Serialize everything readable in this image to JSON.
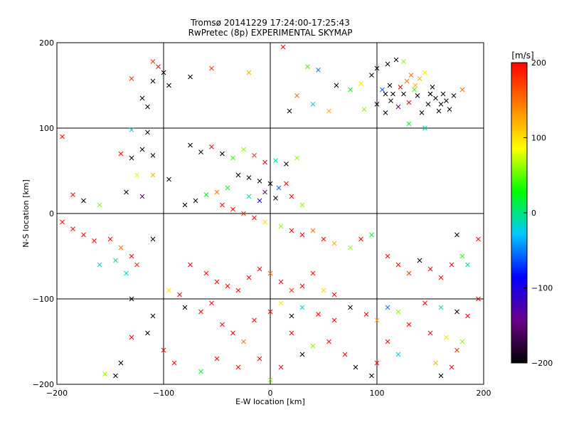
{
  "chart_data": {
    "type": "scatter",
    "title_line1": "Tromsø 20141229 17:24:00-17:25:43",
    "title_line2": "RwPretec (8p) EXPERIMENTAL SKYMAP",
    "xlabel": "E-W location [km]",
    "ylabel": "N-S location [km]",
    "xlim": [
      -200,
      200
    ],
    "ylim": [
      -200,
      200
    ],
    "xticks": [
      -200,
      -100,
      0,
      100,
      200
    ],
    "yticks": [
      -200,
      -100,
      0,
      100,
      200
    ],
    "grid": true,
    "colorbar": {
      "label": "[m/s]",
      "min": -200,
      "max": 200,
      "ticks": [
        200,
        100,
        0,
        -100,
        -200
      ],
      "colors": [
        "#000000",
        "#6a008a",
        "#0000ff",
        "#00c8ff",
        "#00ff00",
        "#ffff00",
        "#ff8000",
        "#ff0000"
      ]
    },
    "markers": {
      "cross": "×",
      "dot": "+"
    },
    "points_x": [
      {
        "x": -110,
        "y": 178,
        "v": 180
      },
      {
        "x": -105,
        "y": 172,
        "v": 200
      },
      {
        "x": -100,
        "y": 165,
        "v": -200
      },
      {
        "x": -95,
        "y": 150,
        "v": -200
      },
      {
        "x": -110,
        "y": 155,
        "v": -200
      },
      {
        "x": -120,
        "y": 135,
        "v": -200
      },
      {
        "x": -115,
        "y": 125,
        "v": -200
      },
      {
        "x": -130,
        "y": 158,
        "v": 180
      },
      {
        "x": -75,
        "y": 160,
        "v": -200
      },
      {
        "x": -55,
        "y": 170,
        "v": 180
      },
      {
        "x": -20,
        "y": 165,
        "v": 120
      },
      {
        "x": 12,
        "y": 195,
        "v": 200
      },
      {
        "x": 35,
        "y": 172,
        "v": 40
      },
      {
        "x": 45,
        "y": 168,
        "v": -50
      },
      {
        "x": 62,
        "y": 150,
        "v": -200
      },
      {
        "x": 18,
        "y": 120,
        "v": -200
      },
      {
        "x": 25,
        "y": 138,
        "v": 150
      },
      {
        "x": 40,
        "y": 128,
        "v": -20
      },
      {
        "x": 55,
        "y": 120,
        "v": 120
      },
      {
        "x": 75,
        "y": 145,
        "v": 20
      },
      {
        "x": 85,
        "y": 152,
        "v": 100
      },
      {
        "x": 95,
        "y": 162,
        "v": -200
      },
      {
        "x": 100,
        "y": 170,
        "v": -200
      },
      {
        "x": 110,
        "y": 175,
        "v": -200
      },
      {
        "x": 118,
        "y": 180,
        "v": -200
      },
      {
        "x": 125,
        "y": 178,
        "v": 60
      },
      {
        "x": 105,
        "y": 145,
        "v": -60
      },
      {
        "x": 112,
        "y": 150,
        "v": -200
      },
      {
        "x": 115,
        "y": 140,
        "v": -200
      },
      {
        "x": 122,
        "y": 148,
        "v": 200
      },
      {
        "x": 128,
        "y": 155,
        "v": 150
      },
      {
        "x": 132,
        "y": 162,
        "v": 150
      },
      {
        "x": 136,
        "y": 150,
        "v": 120
      },
      {
        "x": 140,
        "y": 158,
        "v": 120
      },
      {
        "x": 145,
        "y": 165,
        "v": 100
      },
      {
        "x": 150,
        "y": 140,
        "v": -200
      },
      {
        "x": 155,
        "y": 135,
        "v": -200
      },
      {
        "x": 160,
        "y": 128,
        "v": -200
      },
      {
        "x": 165,
        "y": 132,
        "v": -200
      },
      {
        "x": 148,
        "y": 128,
        "v": -200
      },
      {
        "x": 158,
        "y": 120,
        "v": -200
      },
      {
        "x": 168,
        "y": 122,
        "v": -200
      },
      {
        "x": 172,
        "y": 138,
        "v": -200
      },
      {
        "x": 142,
        "y": 118,
        "v": -200
      },
      {
        "x": 130,
        "y": 130,
        "v": 200
      },
      {
        "x": 120,
        "y": 125,
        "v": -150
      },
      {
        "x": 108,
        "y": 118,
        "v": -200
      },
      {
        "x": 100,
        "y": 128,
        "v": -200
      },
      {
        "x": 88,
        "y": 122,
        "v": 60
      },
      {
        "x": 130,
        "y": 105,
        "v": 20
      },
      {
        "x": 145,
        "y": 100,
        "v": 0
      },
      {
        "x": 180,
        "y": 145,
        "v": 150
      },
      {
        "x": -195,
        "y": 90,
        "v": 200
      },
      {
        "x": -130,
        "y": 98,
        "v": -20
      },
      {
        "x": -115,
        "y": 95,
        "v": -200
      },
      {
        "x": -120,
        "y": 75,
        "v": -200
      },
      {
        "x": -110,
        "y": 68,
        "v": -200
      },
      {
        "x": -130,
        "y": 65,
        "v": -200
      },
      {
        "x": -140,
        "y": 70,
        "v": 200
      },
      {
        "x": -125,
        "y": 45,
        "v": 80
      },
      {
        "x": -110,
        "y": 45,
        "v": 120
      },
      {
        "x": -185,
        "y": 22,
        "v": 200
      },
      {
        "x": -175,
        "y": 15,
        "v": -200
      },
      {
        "x": -160,
        "y": 10,
        "v": 60
      },
      {
        "x": -135,
        "y": 25,
        "v": -200
      },
      {
        "x": -120,
        "y": 20,
        "v": -150
      },
      {
        "x": -195,
        "y": -10,
        "v": 200
      },
      {
        "x": -185,
        "y": -18,
        "v": 200
      },
      {
        "x": -175,
        "y": -25,
        "v": 200
      },
      {
        "x": -165,
        "y": -32,
        "v": 200
      },
      {
        "x": -150,
        "y": -30,
        "v": 200
      },
      {
        "x": -140,
        "y": -40,
        "v": 150
      },
      {
        "x": -130,
        "y": -50,
        "v": 200
      },
      {
        "x": -125,
        "y": -60,
        "v": 180
      },
      {
        "x": -145,
        "y": -55,
        "v": 0
      },
      {
        "x": -160,
        "y": -60,
        "v": -20
      },
      {
        "x": -135,
        "y": -70,
        "v": -20
      },
      {
        "x": -110,
        "y": -30,
        "v": -200
      },
      {
        "x": -95,
        "y": 40,
        "v": -200
      },
      {
        "x": -75,
        "y": 80,
        "v": -200
      },
      {
        "x": -65,
        "y": 72,
        "v": -200
      },
      {
        "x": -55,
        "y": 78,
        "v": 200
      },
      {
        "x": -45,
        "y": 70,
        "v": -200
      },
      {
        "x": -35,
        "y": 65,
        "v": 40
      },
      {
        "x": -25,
        "y": 75,
        "v": 60
      },
      {
        "x": -15,
        "y": 68,
        "v": 180
      },
      {
        "x": -5,
        "y": 60,
        "v": 200
      },
      {
        "x": 5,
        "y": 62,
        "v": 0
      },
      {
        "x": 15,
        "y": 58,
        "v": -200
      },
      {
        "x": 25,
        "y": 65,
        "v": 60
      },
      {
        "x": -30,
        "y": 45,
        "v": -200
      },
      {
        "x": -20,
        "y": 42,
        "v": -200
      },
      {
        "x": -10,
        "y": 38,
        "v": -200
      },
      {
        "x": 0,
        "y": 35,
        "v": -200
      },
      {
        "x": 8,
        "y": 30,
        "v": -60
      },
      {
        "x": 15,
        "y": 35,
        "v": 200
      },
      {
        "x": -40,
        "y": 30,
        "v": 20
      },
      {
        "x": -50,
        "y": 25,
        "v": 150
      },
      {
        "x": -60,
        "y": 22,
        "v": 20
      },
      {
        "x": -70,
        "y": 15,
        "v": -200
      },
      {
        "x": -80,
        "y": 10,
        "v": -200
      },
      {
        "x": -45,
        "y": 10,
        "v": 200
      },
      {
        "x": -35,
        "y": 5,
        "v": 200
      },
      {
        "x": -25,
        "y": 0,
        "v": 180
      },
      {
        "x": -15,
        "y": -5,
        "v": 200
      },
      {
        "x": -5,
        "y": -10,
        "v": 100
      },
      {
        "x": 10,
        "y": -15,
        "v": 60
      },
      {
        "x": 20,
        "y": -20,
        "v": 200
      },
      {
        "x": 30,
        "y": -25,
        "v": 200
      },
      {
        "x": 40,
        "y": -20,
        "v": 150
      },
      {
        "x": 50,
        "y": -30,
        "v": 200
      },
      {
        "x": 60,
        "y": -35,
        "v": 120
      },
      {
        "x": 75,
        "y": -40,
        "v": 60
      },
      {
        "x": 85,
        "y": -30,
        "v": 200
      },
      {
        "x": 95,
        "y": -25,
        "v": 20
      },
      {
        "x": 110,
        "y": -50,
        "v": 200
      },
      {
        "x": 120,
        "y": -60,
        "v": 200
      },
      {
        "x": 130,
        "y": -70,
        "v": 180
      },
      {
        "x": 140,
        "y": -55,
        "v": -200
      },
      {
        "x": 150,
        "y": -65,
        "v": 200
      },
      {
        "x": 160,
        "y": -75,
        "v": 200
      },
      {
        "x": 170,
        "y": -60,
        "v": 200
      },
      {
        "x": 180,
        "y": -50,
        "v": 40
      },
      {
        "x": 185,
        "y": -60,
        "v": 0
      },
      {
        "x": 195,
        "y": -30,
        "v": 200
      },
      {
        "x": 175,
        "y": -25,
        "v": -200
      },
      {
        "x": -75,
        "y": -60,
        "v": 200
      },
      {
        "x": -60,
        "y": -70,
        "v": 200
      },
      {
        "x": -50,
        "y": -80,
        "v": 200
      },
      {
        "x": -40,
        "y": -85,
        "v": 200
      },
      {
        "x": -30,
        "y": -90,
        "v": 200
      },
      {
        "x": -20,
        "y": -75,
        "v": 200
      },
      {
        "x": -10,
        "y": -65,
        "v": 200
      },
      {
        "x": 0,
        "y": -70,
        "v": 150
      },
      {
        "x": 10,
        "y": -80,
        "v": 200
      },
      {
        "x": 20,
        "y": -90,
        "v": 180
      },
      {
        "x": 30,
        "y": -85,
        "v": 200
      },
      {
        "x": 40,
        "y": -70,
        "v": 200
      },
      {
        "x": 50,
        "y": -90,
        "v": 100
      },
      {
        "x": 60,
        "y": -95,
        "v": 200
      },
      {
        "x": -85,
        "y": -95,
        "v": 200
      },
      {
        "x": -95,
        "y": -90,
        "v": 100
      },
      {
        "x": -80,
        "y": -110,
        "v": -200
      },
      {
        "x": -65,
        "y": -115,
        "v": 200
      },
      {
        "x": -55,
        "y": -105,
        "v": 200
      },
      {
        "x": -45,
        "y": -130,
        "v": 200
      },
      {
        "x": -35,
        "y": -140,
        "v": 200
      },
      {
        "x": -25,
        "y": -150,
        "v": 150
      },
      {
        "x": -15,
        "y": -125,
        "v": 200
      },
      {
        "x": 0,
        "y": -115,
        "v": 200
      },
      {
        "x": 10,
        "y": -105,
        "v": 100
      },
      {
        "x": 20,
        "y": -120,
        "v": -200
      },
      {
        "x": 30,
        "y": -110,
        "v": -20
      },
      {
        "x": 45,
        "y": -118,
        "v": 200
      },
      {
        "x": 60,
        "y": -125,
        "v": 200
      },
      {
        "x": 75,
        "y": -110,
        "v": -200
      },
      {
        "x": 90,
        "y": -118,
        "v": 200
      },
      {
        "x": 100,
        "y": -125,
        "v": 120
      },
      {
        "x": 110,
        "y": -110,
        "v": -50
      },
      {
        "x": 120,
        "y": -115,
        "v": 60
      },
      {
        "x": 130,
        "y": -130,
        "v": 200
      },
      {
        "x": 145,
        "y": -105,
        "v": 200
      },
      {
        "x": 160,
        "y": -110,
        "v": 0
      },
      {
        "x": 175,
        "y": -115,
        "v": -200
      },
      {
        "x": 185,
        "y": -120,
        "v": 200
      },
      {
        "x": 195,
        "y": -100,
        "v": 200
      },
      {
        "x": 150,
        "y": -140,
        "v": 200
      },
      {
        "x": 165,
        "y": -145,
        "v": 100
      },
      {
        "x": 175,
        "y": -160,
        "v": 180
      },
      {
        "x": 180,
        "y": -150,
        "v": 60
      },
      {
        "x": 155,
        "y": -175,
        "v": 120
      },
      {
        "x": 170,
        "y": -180,
        "v": 200
      },
      {
        "x": 110,
        "y": -150,
        "v": 200
      },
      {
        "x": 120,
        "y": -165,
        "v": -20
      },
      {
        "x": 100,
        "y": -175,
        "v": 200
      },
      {
        "x": 95,
        "y": -190,
        "v": -200
      },
      {
        "x": 80,
        "y": -180,
        "v": -200
      },
      {
        "x": 70,
        "y": -165,
        "v": 200
      },
      {
        "x": 55,
        "y": -150,
        "v": 200
      },
      {
        "x": 40,
        "y": -155,
        "v": 60
      },
      {
        "x": 30,
        "y": -165,
        "v": -200
      },
      {
        "x": 20,
        "y": -140,
        "v": 200
      },
      {
        "x": 10,
        "y": -180,
        "v": 200
      },
      {
        "x": 0,
        "y": -195,
        "v": 60
      },
      {
        "x": -10,
        "y": -170,
        "v": 200
      },
      {
        "x": -30,
        "y": -180,
        "v": 200
      },
      {
        "x": -50,
        "y": -170,
        "v": 200
      },
      {
        "x": -65,
        "y": -185,
        "v": 20
      },
      {
        "x": -90,
        "y": -175,
        "v": 200
      },
      {
        "x": -100,
        "y": -160,
        "v": 200
      },
      {
        "x": -115,
        "y": -140,
        "v": -200
      },
      {
        "x": -130,
        "y": -145,
        "v": 200
      },
      {
        "x": -140,
        "y": -175,
        "v": -200
      },
      {
        "x": -145,
        "y": -190,
        "v": -200
      },
      {
        "x": -155,
        "y": -188,
        "v": 60
      },
      {
        "x": -110,
        "y": -120,
        "v": -200
      },
      {
        "x": -130,
        "y": -100,
        "v": -200
      },
      {
        "x": 160,
        "y": -190,
        "v": -200
      },
      {
        "x": 150,
        "y": 140,
        "v": -200
      },
      {
        "x": 108,
        "y": 140,
        "v": -200
      },
      {
        "x": 113,
        "y": 132,
        "v": -200
      },
      {
        "x": 125,
        "y": 140,
        "v": -200
      },
      {
        "x": 135,
        "y": 145,
        "v": 40
      },
      {
        "x": 138,
        "y": 138,
        "v": -200
      },
      {
        "x": 152,
        "y": 148,
        "v": -200
      },
      {
        "x": 162,
        "y": 140,
        "v": -200
      },
      {
        "x": -5,
        "y": 25,
        "v": -150
      },
      {
        "x": 5,
        "y": 18,
        "v": -200
      },
      {
        "x": 20,
        "y": 20,
        "v": 200
      },
      {
        "x": 30,
        "y": 10,
        "v": 60
      },
      {
        "x": -10,
        "y": 15,
        "v": -100
      },
      {
        "x": -20,
        "y": 20,
        "v": 0
      }
    ]
  }
}
